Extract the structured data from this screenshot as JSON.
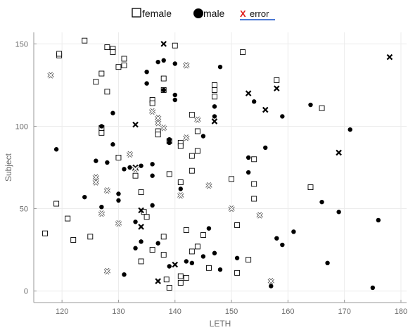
{
  "chart_data": {
    "type": "scatter",
    "title": "",
    "xlabel": "LETH",
    "ylabel": "Subject",
    "xlim": [
      115,
      181
    ],
    "ylim": [
      -7,
      157
    ],
    "xticks": [
      120,
      130,
      140,
      150,
      160,
      170,
      180
    ],
    "yticks": [
      0,
      50,
      100,
      150
    ],
    "x_tick_labels": [
      "120",
      "130",
      "140",
      "150",
      "160",
      "170",
      "180"
    ],
    "y_tick_labels": [
      "0",
      "50",
      "100",
      "150"
    ],
    "grid": true,
    "legend": {
      "placement": "top-center",
      "entries": [
        {
          "label": "female",
          "marker": "square-open"
        },
        {
          "label": "male",
          "marker": "circle-filled"
        },
        {
          "label": "error",
          "marker": "x",
          "marker_glyph": "X"
        }
      ]
    },
    "colors": {
      "female": "#000000",
      "male": "#000000",
      "error": "#000000",
      "error_glyph": "#e02020",
      "error_underline": "#4a78d4",
      "grid": "#ececec",
      "axes": "#9a9a9a"
    },
    "series": [
      {
        "name": "female",
        "marker": "square-open",
        "points": [
          [
            117,
            35
          ],
          [
            119,
            53
          ],
          [
            119.5,
            143
          ],
          [
            119.5,
            144
          ],
          [
            121,
            44
          ],
          [
            122,
            31
          ],
          [
            124,
            152
          ],
          [
            125,
            33
          ],
          [
            126,
            127
          ],
          [
            127,
            132
          ],
          [
            127,
            96
          ],
          [
            127,
            99
          ],
          [
            128,
            148
          ],
          [
            128,
            121
          ],
          [
            129,
            147
          ],
          [
            129,
            145
          ],
          [
            130,
            136
          ],
          [
            130,
            81
          ],
          [
            131,
            141
          ],
          [
            131,
            137
          ],
          [
            133,
            70
          ],
          [
            134,
            60
          ],
          [
            134,
            18
          ],
          [
            134.5,
            48
          ],
          [
            135,
            45
          ],
          [
            136,
            116
          ],
          [
            136,
            114
          ],
          [
            136,
            25
          ],
          [
            137,
            97
          ],
          [
            137,
            95
          ],
          [
            138,
            122
          ],
          [
            138,
            129
          ],
          [
            138,
            33
          ],
          [
            138,
            22
          ],
          [
            138.5,
            7
          ],
          [
            139,
            71
          ],
          [
            139,
            91
          ],
          [
            139,
            2
          ],
          [
            140,
            149
          ],
          [
            141,
            90
          ],
          [
            141,
            88
          ],
          [
            141,
            66
          ],
          [
            141,
            9
          ],
          [
            141,
            5
          ],
          [
            142,
            8
          ],
          [
            142,
            37
          ],
          [
            143,
            107
          ],
          [
            143,
            82
          ],
          [
            143,
            73
          ],
          [
            143,
            24
          ],
          [
            144,
            97
          ],
          [
            144,
            27
          ],
          [
            144,
            85
          ],
          [
            145,
            34
          ],
          [
            146,
            14
          ],
          [
            147,
            125
          ],
          [
            147,
            122
          ],
          [
            147,
            118
          ],
          [
            150,
            68
          ],
          [
            151,
            40
          ],
          [
            151,
            11
          ],
          [
            152,
            145
          ],
          [
            153,
            19
          ],
          [
            154,
            80
          ],
          [
            154,
            65
          ],
          [
            154,
            56
          ],
          [
            158,
            128
          ],
          [
            164,
            63
          ],
          [
            166,
            111
          ]
        ]
      },
      {
        "name": "male",
        "marker": "circle-filled",
        "points": [
          [
            119,
            86
          ],
          [
            124,
            57
          ],
          [
            126,
            79
          ],
          [
            127,
            100
          ],
          [
            127,
            51
          ],
          [
            128,
            78
          ],
          [
            129,
            108
          ],
          [
            129,
            89
          ],
          [
            130,
            59
          ],
          [
            130,
            55
          ],
          [
            131,
            10
          ],
          [
            131,
            74
          ],
          [
            132,
            75
          ],
          [
            133,
            42
          ],
          [
            133,
            26
          ],
          [
            134,
            76
          ],
          [
            134,
            30
          ],
          [
            135,
            133
          ],
          [
            135,
            126
          ],
          [
            136,
            77
          ],
          [
            136,
            70
          ],
          [
            136,
            52
          ],
          [
            137,
            139
          ],
          [
            137,
            29
          ],
          [
            138,
            140
          ],
          [
            138,
            122
          ],
          [
            139,
            92
          ],
          [
            139,
            90
          ],
          [
            139,
            15
          ],
          [
            140,
            138
          ],
          [
            140,
            119
          ],
          [
            140,
            116
          ],
          [
            141,
            62
          ],
          [
            142,
            18
          ],
          [
            143,
            17
          ],
          [
            145,
            94
          ],
          [
            145,
            21
          ],
          [
            146,
            38
          ],
          [
            147,
            112
          ],
          [
            147,
            106
          ],
          [
            147,
            23
          ],
          [
            148,
            136
          ],
          [
            148,
            13
          ],
          [
            151,
            20
          ],
          [
            153,
            72
          ],
          [
            153,
            81
          ],
          [
            154,
            115
          ],
          [
            156,
            87
          ],
          [
            157,
            3
          ],
          [
            158,
            32
          ],
          [
            159,
            28
          ],
          [
            159,
            106
          ],
          [
            161,
            36
          ],
          [
            164,
            113
          ],
          [
            166,
            54
          ],
          [
            167,
            17
          ],
          [
            169,
            48
          ],
          [
            171,
            98
          ],
          [
            175,
            2
          ],
          [
            176,
            43
          ]
        ]
      },
      {
        "name": "error",
        "marker": "x",
        "points": [
          [
            138,
            150
          ],
          [
            133,
            101
          ],
          [
            133,
            75
          ],
          [
            134,
            49
          ],
          [
            134,
            39
          ],
          [
            137,
            6
          ],
          [
            140,
            16
          ],
          [
            147,
            103
          ],
          [
            153,
            120
          ],
          [
            156,
            110
          ],
          [
            158,
            123
          ],
          [
            169,
            84
          ],
          [
            178,
            142
          ]
        ]
      },
      {
        "name": "",
        "marker": "x-open",
        "points": [
          [
            118,
            131
          ],
          [
            127,
            47
          ],
          [
            128,
            61
          ],
          [
            128,
            12
          ],
          [
            130,
            41
          ],
          [
            132,
            83
          ],
          [
            133,
            74
          ],
          [
            136,
            109
          ],
          [
            137,
            102
          ],
          [
            137,
            105
          ],
          [
            138,
            99
          ],
          [
            141,
            58
          ],
          [
            142,
            137
          ],
          [
            142,
            93
          ],
          [
            144,
            104
          ],
          [
            146,
            64
          ],
          [
            150,
            50
          ],
          [
            155,
            46
          ],
          [
            126,
            69
          ],
          [
            126,
            66
          ],
          [
            157,
            6
          ]
        ]
      }
    ]
  }
}
